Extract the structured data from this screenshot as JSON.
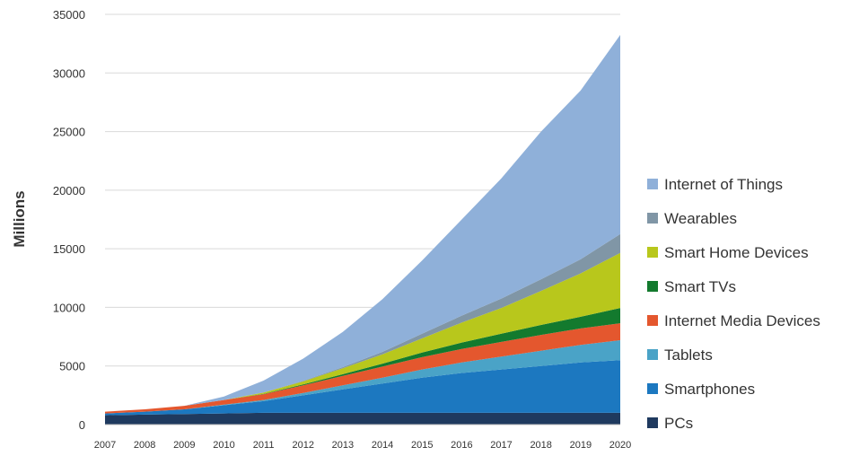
{
  "chart_data": {
    "type": "area",
    "stacked": true,
    "title": "",
    "xlabel": "",
    "ylabel": "Millions",
    "ylim": [
      0,
      35000
    ],
    "yticks": [
      "0",
      "5000",
      "10000",
      "15000",
      "20000",
      "25000",
      "30000",
      "35000"
    ],
    "grid": true,
    "legend": "right",
    "x": [
      "2007",
      "2008",
      "2009",
      "2010",
      "2011",
      "2012",
      "2013",
      "2014",
      "2015",
      "2016",
      "2017",
      "2018",
      "2019",
      "2020"
    ],
    "series": [
      {
        "name": "PCs",
        "color": "#1f3a5f",
        "values": [
          800,
          850,
          900,
          950,
          1000,
          1000,
          1000,
          1000,
          1000,
          1000,
          1000,
          1000,
          1000,
          1000
        ]
      },
      {
        "name": "Smartphones",
        "color": "#1c78c0",
        "values": [
          150,
          250,
          400,
          700,
          1000,
          1500,
          2000,
          2500,
          3000,
          3400,
          3700,
          4000,
          4300,
          4500
        ]
      },
      {
        "name": "Tablets",
        "color": "#4aa3c7",
        "values": [
          0,
          0,
          0,
          50,
          100,
          200,
          350,
          500,
          700,
          900,
          1100,
          1300,
          1500,
          1700
        ]
      },
      {
        "name": "Internet Media Devices",
        "color": "#e4572e",
        "values": [
          150,
          200,
          300,
          400,
          500,
          650,
          800,
          950,
          1050,
          1150,
          1250,
          1350,
          1400,
          1450
        ]
      },
      {
        "name": "Smart TVs",
        "color": "#137a2e",
        "values": [
          0,
          0,
          0,
          0,
          30,
          80,
          150,
          250,
          400,
          550,
          700,
          850,
          1000,
          1300
        ]
      },
      {
        "name": "Smart Home Devices",
        "color": "#b8c71c",
        "values": [
          0,
          0,
          0,
          0,
          100,
          250,
          500,
          800,
          1200,
          1700,
          2200,
          2900,
          3700,
          4700
        ]
      },
      {
        "name": "Wearables",
        "color": "#8096a6",
        "values": [
          0,
          0,
          0,
          0,
          20,
          50,
          100,
          200,
          400,
          600,
          800,
          1000,
          1200,
          1600
        ]
      },
      {
        "name": "Internet of Things",
        "color": "#8fb0d9",
        "values": [
          0,
          0,
          0,
          300,
          1000,
          1900,
          3000,
          4500,
          6250,
          8200,
          10250,
          12600,
          14400,
          17000
        ]
      }
    ]
  }
}
